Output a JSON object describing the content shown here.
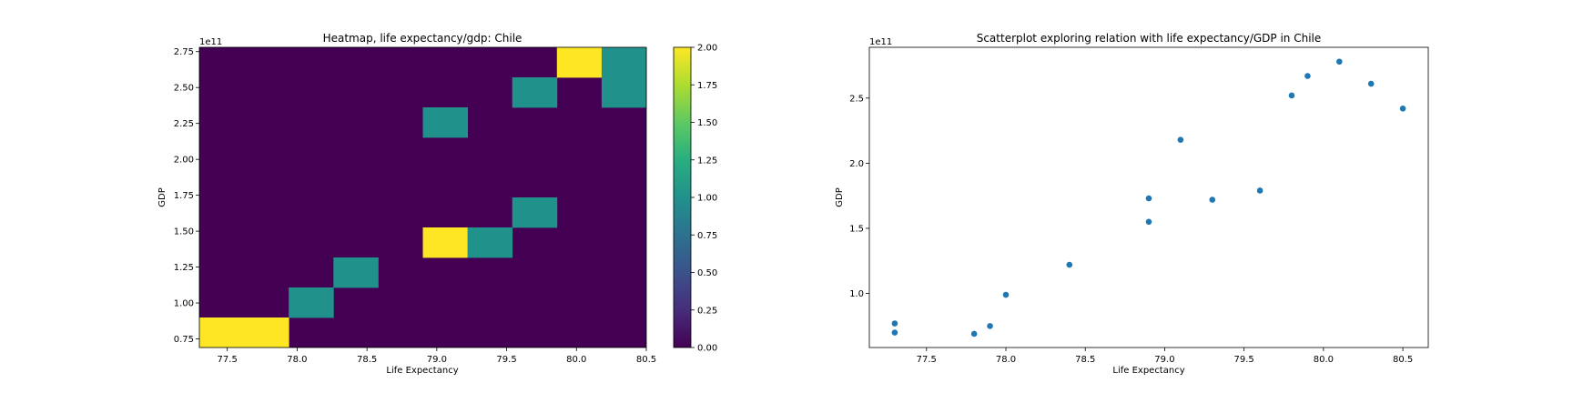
{
  "chart_data": [
    {
      "type": "heatmap",
      "title": "Heatmap, life expectancy/gdp: Chile",
      "xlabel": "Life Expectancy",
      "ylabel": "GDP",
      "y_offset_label": "1e11",
      "xlim": [
        77.3,
        80.5
      ],
      "ylim": [
        0.69,
        2.78
      ],
      "x_ticks": [
        77.5,
        78.0,
        78.5,
        79.0,
        79.5,
        80.0,
        80.5
      ],
      "x_tick_labels": [
        "77.5",
        "78.0",
        "78.5",
        "79.0",
        "79.5",
        "80.0",
        "80.5"
      ],
      "y_ticks": [
        0.75,
        1.0,
        1.25,
        1.5,
        1.75,
        2.0,
        2.25,
        2.5,
        2.75
      ],
      "y_tick_labels": [
        "0.75",
        "1.00",
        "1.25",
        "1.50",
        "1.75",
        "2.00",
        "2.25",
        "2.50",
        "2.75"
      ],
      "bins": [
        10,
        10
      ],
      "cells": [
        {
          "col": 0,
          "row": 0,
          "value": 2
        },
        {
          "col": 1,
          "row": 0,
          "value": 2
        },
        {
          "col": 2,
          "row": 1,
          "value": 1
        },
        {
          "col": 3,
          "row": 2,
          "value": 1
        },
        {
          "col": 5,
          "row": 3,
          "value": 2
        },
        {
          "col": 6,
          "row": 3,
          "value": 1
        },
        {
          "col": 7,
          "row": 4,
          "value": 1
        },
        {
          "col": 5,
          "row": 7,
          "value": 1
        },
        {
          "col": 7,
          "row": 8,
          "value": 1
        },
        {
          "col": 9,
          "row": 8,
          "value": 1
        },
        {
          "col": 8,
          "row": 9,
          "value": 2
        },
        {
          "col": 9,
          "row": 9,
          "value": 1
        }
      ],
      "colorbar": {
        "min": 0,
        "max": 2,
        "ticks": [
          0.0,
          0.25,
          0.5,
          0.75,
          1.0,
          1.25,
          1.5,
          1.75,
          2.0
        ],
        "tick_labels": [
          "0.00",
          "0.25",
          "0.50",
          "0.75",
          "1.00",
          "1.25",
          "1.50",
          "1.75",
          "2.00"
        ],
        "colors": [
          "#440154",
          "#21918c",
          "#fde725"
        ]
      }
    },
    {
      "type": "scatter",
      "title": "Scatterplot exploring relation with life expectancy/GDP in Chile",
      "xlabel": "Life Expectancy",
      "ylabel": "GDP",
      "y_offset_label": "1e11",
      "xlim": [
        77.14,
        80.66
      ],
      "ylim": [
        0.585,
        2.89
      ],
      "x_ticks": [
        77.5,
        78.0,
        78.5,
        79.0,
        79.5,
        80.0,
        80.5
      ],
      "x_tick_labels": [
        "77.5",
        "78.0",
        "78.5",
        "79.0",
        "79.5",
        "80.0",
        "80.5"
      ],
      "y_ticks": [
        1.0,
        1.5,
        2.0,
        2.5
      ],
      "y_tick_labels": [
        "1.0",
        "1.5",
        "2.0",
        "2.5"
      ],
      "marker_color": "#1f77b4",
      "x": [
        77.3,
        77.3,
        77.8,
        77.9,
        78.0,
        78.4,
        78.9,
        78.9,
        79.1,
        79.3,
        79.6,
        79.8,
        79.9,
        80.1,
        80.3,
        80.5
      ],
      "y": [
        0.7,
        0.77,
        0.69,
        0.75,
        0.99,
        1.22,
        1.55,
        1.73,
        2.18,
        1.72,
        1.79,
        2.52,
        2.67,
        2.78,
        2.61,
        2.42
      ]
    }
  ]
}
